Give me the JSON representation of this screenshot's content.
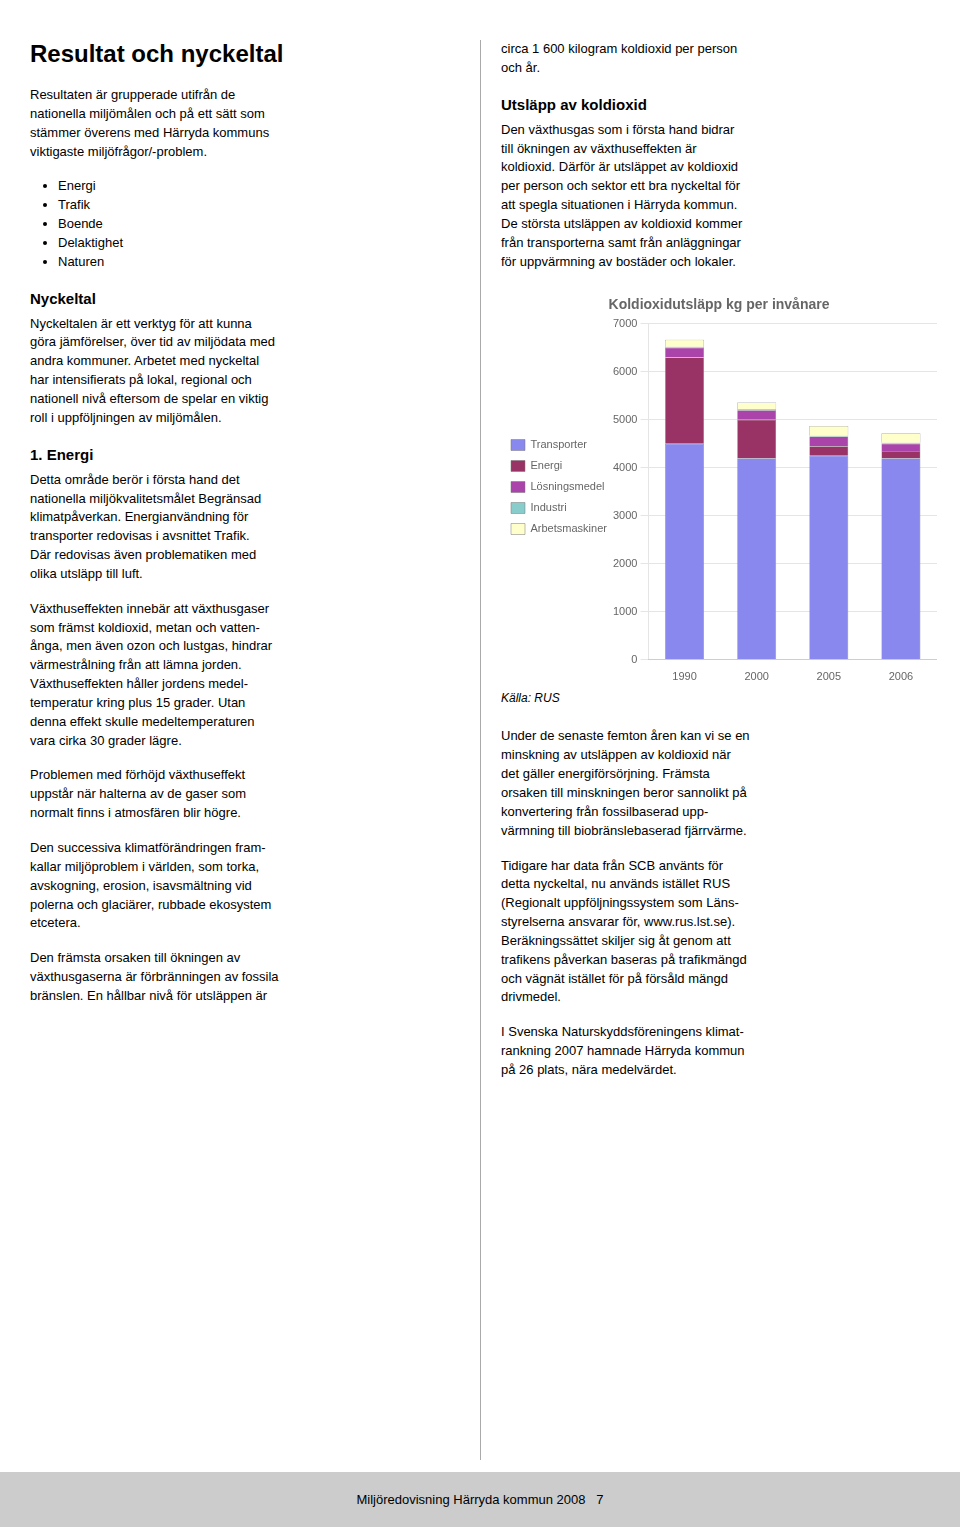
{
  "chart_data": {
    "type": "bar",
    "stacked": true,
    "title": "Koldioxidutsläpp kg per invånare",
    "categories": [
      "1990",
      "2000",
      "2005",
      "2006"
    ],
    "series": [
      {
        "name": "Transporter",
        "color": "#8888ee",
        "values": [
          4500,
          4200,
          4250,
          4200
        ]
      },
      {
        "name": "Energi",
        "color": "#993366",
        "values": [
          1800,
          800,
          200,
          150
        ]
      },
      {
        "name": "Lösningsmedel",
        "color": "#aa44aa",
        "values": [
          200,
          200,
          200,
          150
        ]
      },
      {
        "name": "Industri",
        "color": "#88cccc",
        "values": [
          20,
          20,
          20,
          20
        ]
      },
      {
        "name": "Arbetsmaskiner",
        "color": "#ffffcc",
        "values": [
          150,
          140,
          200,
          200
        ]
      }
    ],
    "ylim": [
      0,
      7000
    ],
    "yticks": [
      0,
      1000,
      2000,
      3000,
      4000,
      5000,
      6000,
      7000
    ],
    "grid": true,
    "legend": "left",
    "annotations": [
      "Resultat och nyckeltal",
      "Resultaten är grupperade utifrån de\nnationella miljömålen och på ett sätt som\nstämmer överens med Härryda kommuns\nviktigaste miljöfrågor/-problem.",
      "Energi",
      "Trafik",
      "Boende",
      "Delaktighet",
      "Naturen",
      "Nyckeltal",
      "Nyckeltalen är ett verktyg för att kunna\ngöra jämförelser, över tid av miljödata med\nandra kommuner. Arbetet med nyckeltal\nhar intensifierats på lokal, regional och\nnationell nivå eftersom de spelar en viktig\nroll i uppföljningen av miljömålen.",
      "1. Energi",
      "Detta område berör i första hand det\nnationella miljökvalitetsmålet Begränsad\nklimatpåverkan. Energianvändning för\ntransporter redovisas i avsnittet Trafik.\nDär redovisas även problematiken med\nolika utsläpp till luft.",
      "Växthuseffekten innebär att växthusgaser\nsom främst koldioxid, metan och vatten-\nånga, men även ozon och lustgas, hindrar\nvärmestrålning från att lämna jorden.\nVäxthuseffekten håller jordens medel-\ntemperatur kring plus 15 grader. Utan\ndenna effekt skulle medeltemperaturen\nvara cirka 30 grader lägre.",
      "Problemen med förhöjd växthuseffekt\nuppstår när halterna av de gaser som\nnormalt finns i atmosfären blir högre.",
      "Den successiva klimatförändringen fram-\nkallar miljöproblem i världen, som torka,\navskogning, erosion, isavsmältning vid\npolerna och glaciärer, rubbade ekosystem\netcetera.",
      "Den främsta orsaken till ökningen av\nväxthusgaserna är förbränningen av fossila\nbränslen. En hållbar nivå för utsläppen är",
      "circa 1 600 kilogram koldioxid per person\noch år.",
      "Utsläpp av koldioxid",
      "Den växthusgas som i första hand bidrar\ntill ökningen av växthuseffekten är\nkoldioxid. Därför är utsläppet av koldioxid\nper person och sektor ett bra nyckeltal för\natt spegla situationen i Härryda kommun.\nDe största utsläppen av koldioxid kommer\nfrån transporterna samt från anläggningar\nför uppvärmning av bostäder och lokaler.",
      "Källa: RUS",
      "Under de senaste femton åren kan vi se en\nminskning av utsläppen av koldioxid när\ndet gäller energiförsörjning. Främsta\norsaken till minskningen beror sannolikt på\nkonvertering från fossilbaserad upp-\nvärmning till biobränslebaserad fjärrvärme.",
      "Tidigare har data från SCB använts för\ndetta nyckeltal, nu används istället RUS\n(Regionalt uppföljningssystem som Läns-\nstyrelserna ansvarar för, www.rus.lst.se).\nBeräkningssättet skiljer sig åt genom att\ntrafikens påverkan baseras på trafikmängd\noch vägnät istället för på försåld mängd\ndrivmedel.",
      "I Svenska Naturskyddsföreningens klimat-\nrankning 2007 hamnade Härryda kommun\npå 26 plats, nära medelvärdet.",
      "Miljöredovisning Härryda kommun 2008   7"
    ]
  }
}
